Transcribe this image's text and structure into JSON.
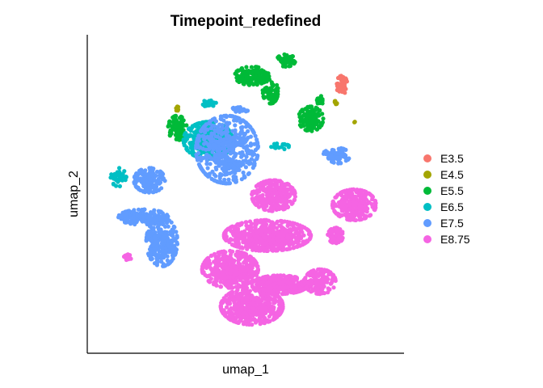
{
  "chart_data": {
    "type": "scatter",
    "title": "Timepoint_redefined",
    "xlabel": "umap_1",
    "ylabel": "umap_2",
    "grid": false,
    "legend_position": "right",
    "ticks": "none",
    "series": [
      {
        "name": "E3.5",
        "color": "#F8766D",
        "clusters": [
          {
            "cx": 0.81,
            "cy": 0.86,
            "rx": 0.018,
            "ry": 0.03,
            "n": 60
          }
        ]
      },
      {
        "name": "E4.5",
        "color": "#A3A500",
        "clusters": [
          {
            "cx": 0.28,
            "cy": 0.78,
            "rx": 0.006,
            "ry": 0.01,
            "n": 8
          },
          {
            "cx": 0.79,
            "cy": 0.8,
            "rx": 0.008,
            "ry": 0.008,
            "n": 6
          },
          {
            "cx": 0.85,
            "cy": 0.74,
            "rx": 0.004,
            "ry": 0.005,
            "n": 3
          }
        ]
      },
      {
        "name": "E5.5",
        "color": "#00BA38",
        "clusters": [
          {
            "cx": 0.52,
            "cy": 0.89,
            "rx": 0.055,
            "ry": 0.03,
            "n": 160
          },
          {
            "cx": 0.63,
            "cy": 0.94,
            "rx": 0.03,
            "ry": 0.02,
            "n": 60
          },
          {
            "cx": 0.58,
            "cy": 0.84,
            "rx": 0.025,
            "ry": 0.04,
            "n": 80
          },
          {
            "cx": 0.71,
            "cy": 0.75,
            "rx": 0.04,
            "ry": 0.04,
            "n": 120
          },
          {
            "cx": 0.28,
            "cy": 0.72,
            "rx": 0.03,
            "ry": 0.04,
            "n": 100
          },
          {
            "cx": 0.74,
            "cy": 0.81,
            "rx": 0.01,
            "ry": 0.015,
            "n": 20
          }
        ]
      },
      {
        "name": "E6.5",
        "color": "#00BFC4",
        "clusters": [
          {
            "cx": 0.38,
            "cy": 0.68,
            "rx": 0.08,
            "ry": 0.06,
            "n": 320
          },
          {
            "cx": 0.09,
            "cy": 0.56,
            "rx": 0.025,
            "ry": 0.03,
            "n": 50
          },
          {
            "cx": 0.38,
            "cy": 0.8,
            "rx": 0.025,
            "ry": 0.01,
            "n": 30
          },
          {
            "cx": 0.61,
            "cy": 0.66,
            "rx": 0.03,
            "ry": 0.01,
            "n": 18
          }
        ]
      },
      {
        "name": "E7.5",
        "color": "#619CFF",
        "clusters": [
          {
            "cx": 0.44,
            "cy": 0.65,
            "rx": 0.1,
            "ry": 0.11,
            "n": 520
          },
          {
            "cx": 0.19,
            "cy": 0.55,
            "rx": 0.05,
            "ry": 0.04,
            "n": 160
          },
          {
            "cx": 0.17,
            "cy": 0.43,
            "rx": 0.08,
            "ry": 0.025,
            "n": 180
          },
          {
            "cx": 0.23,
            "cy": 0.35,
            "rx": 0.05,
            "ry": 0.08,
            "n": 280
          },
          {
            "cx": 0.8,
            "cy": 0.63,
            "rx": 0.035,
            "ry": 0.025,
            "n": 70
          },
          {
            "cx": 0.48,
            "cy": 0.78,
            "rx": 0.03,
            "ry": 0.008,
            "n": 25
          },
          {
            "cx": 0.76,
            "cy": 0.64,
            "rx": 0.01,
            "ry": 0.008,
            "n": 10
          }
        ]
      },
      {
        "name": "E8.75",
        "color": "#F564E3",
        "clusters": [
          {
            "cx": 0.59,
            "cy": 0.5,
            "rx": 0.07,
            "ry": 0.05,
            "n": 300
          },
          {
            "cx": 0.85,
            "cy": 0.47,
            "rx": 0.07,
            "ry": 0.05,
            "n": 280
          },
          {
            "cx": 0.57,
            "cy": 0.37,
            "rx": 0.14,
            "ry": 0.05,
            "n": 600
          },
          {
            "cx": 0.45,
            "cy": 0.26,
            "rx": 0.09,
            "ry": 0.06,
            "n": 450
          },
          {
            "cx": 0.61,
            "cy": 0.21,
            "rx": 0.09,
            "ry": 0.03,
            "n": 380
          },
          {
            "cx": 0.52,
            "cy": 0.14,
            "rx": 0.1,
            "ry": 0.06,
            "n": 500
          },
          {
            "cx": 0.74,
            "cy": 0.22,
            "rx": 0.05,
            "ry": 0.04,
            "n": 150
          },
          {
            "cx": 0.79,
            "cy": 0.37,
            "rx": 0.025,
            "ry": 0.025,
            "n": 70
          },
          {
            "cx": 0.12,
            "cy": 0.3,
            "rx": 0.012,
            "ry": 0.01,
            "n": 20
          }
        ]
      }
    ]
  }
}
